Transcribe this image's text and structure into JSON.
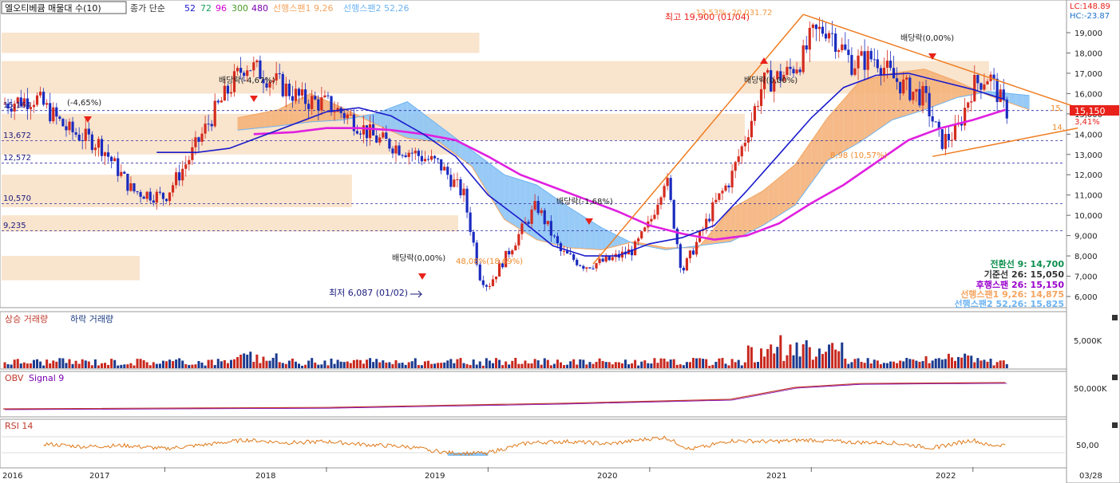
{
  "header": {
    "title": "엘오티베큠 매물대 수(10)",
    "ma_label": "종가 단순",
    "ma_periods": [
      {
        "label": "52",
        "color": "#1a1acc"
      },
      {
        "label": "72",
        "color": "#1a9f5c"
      },
      {
        "label": "96",
        "color": "#cc00cc"
      },
      {
        "label": "300",
        "color": "#4a9a2a"
      },
      {
        "label": "480",
        "color": "#7a00b0"
      }
    ],
    "span1_label": "선행스팬1 9,26",
    "span2_label": "선행스팬2 52,26",
    "span1_color": "#f4a460",
    "span2_color": "#6db3f2"
  },
  "corner": {
    "lc": "LC:148.89",
    "hc": "HC:-23.87"
  },
  "ichimoku_readout": [
    {
      "label": "전환선 9:",
      "value": "14,700",
      "color": "#0b8f4d"
    },
    {
      "label": "기준선 26:",
      "value": "15,050",
      "color": "#333333"
    },
    {
      "label": "후행스팬 26:",
      "value": "15,150",
      "color": "#9900cc"
    },
    {
      "label": "선행스팬1 9,26:",
      "value": "14,875",
      "color": "#f4a460"
    },
    {
      "label": "선행스팬2 52,26:",
      "value": "15,825",
      "color": "#6db3f2"
    }
  ],
  "annotations": {
    "high": "최고 19,900 (01/04)",
    "high_overlay": "-13.53%   -20.031.72",
    "high_fib": "20,031.72",
    "low": "최저 6,087 (01/02)",
    "div_2016": "(-4,65%)",
    "div_2017": "배당락(-4,67%)",
    "div_2018": "배당락(0,00%)",
    "div_2019": "배당락(-1,68%)",
    "div_2020": "배당락(0,00%)",
    "div_2021": "배당락(0,00%)",
    "pct_2019": "48,08%(18,69%)",
    "pct_2021": "8,98 (10,57%)",
    "trend_right_top": "15.",
    "trend_right_bottom": "14."
  },
  "current_price": {
    "value": "15,150",
    "change": "3,41%",
    "color": "#e8221a"
  },
  "level_labels": [
    {
      "text": "15,164",
      "value": 15164
    },
    {
      "text": "13,672",
      "value": 13672
    },
    {
      "text": "12,572",
      "value": 12572
    },
    {
      "text": "10,570",
      "value": 10570
    },
    {
      "text": "9,235",
      "value": 9235
    }
  ],
  "price_axis_labels": [
    "19,000",
    "18,000",
    "17,000",
    "16,000",
    "15,000",
    "14,000",
    "13,000",
    "12,000",
    "11,000",
    "10,000",
    "9,000",
    "8,000",
    "7,000",
    "6,000"
  ],
  "volume_panel": {
    "title_up": "상승 거래량",
    "title_down": "하락 거래량",
    "axis_label": "5,000K"
  },
  "obv_panel": {
    "title": "OBV",
    "signal": "Signal 9",
    "axis_label": "50,000K"
  },
  "rsi_panel": {
    "title": "RSI 14",
    "axis_label": "50,00"
  },
  "x_axis": {
    "labels": [
      "2016",
      "2017",
      "2018",
      "2019",
      "2020",
      "2021",
      "2022",
      "03/28"
    ]
  },
  "chart_data": {
    "type": "line",
    "title": "엘오티베큠 매물대 수(10)",
    "ylim": [
      5600,
      20000
    ],
    "x_range": [
      2016.0,
      2022.5
    ],
    "close_anchors": {
      "x": [
        2016.0,
        2016.2,
        2016.4,
        2016.6,
        2016.8,
        2017.0,
        2017.15,
        2017.3,
        2017.5,
        2017.7,
        2017.85,
        2018.0,
        2018.15,
        2018.3,
        2018.5,
        2018.7,
        2018.85,
        2018.95,
        2019.0,
        2019.15,
        2019.3,
        2019.45,
        2019.6,
        2019.75,
        2019.9,
        2020.0,
        2020.1,
        2020.2,
        2020.3,
        2020.4,
        2020.5,
        2020.6,
        2020.7,
        2020.85,
        2020.95,
        2021.0,
        2021.1,
        2021.25,
        2021.4,
        2021.5,
        2021.6,
        2021.7,
        2021.8,
        2021.9,
        2022.0,
        2022.1,
        2022.2
      ],
      "y": [
        15500,
        15800,
        14200,
        13500,
        11200,
        10900,
        12800,
        15000,
        17500,
        16500,
        15700,
        15500,
        14800,
        13800,
        13200,
        12500,
        11000,
        7000,
        6500,
        8500,
        10500,
        8200,
        7500,
        7800,
        8300,
        9600,
        12000,
        7200,
        8800,
        10500,
        11800,
        14000,
        16500,
        17000,
        17800,
        18800,
        19300,
        17500,
        17800,
        16800,
        16200,
        15800,
        13600,
        14100,
        16400,
        16900,
        15150
      ]
    },
    "sma52": {
      "x": [
        2016.95,
        2017.2,
        2017.4,
        2017.6,
        2017.8,
        2018.0,
        2018.2,
        2018.4,
        2018.6,
        2018.8,
        2019.0,
        2019.2,
        2019.4,
        2019.6,
        2019.8,
        2020.0,
        2020.2,
        2020.4,
        2020.6,
        2020.8,
        2021.0,
        2021.2,
        2021.4,
        2021.6,
        2021.8,
        2022.0,
        2022.2
      ],
      "y": [
        13100,
        13100,
        13300,
        13900,
        14500,
        15100,
        15300,
        14900,
        14000,
        12900,
        11000,
        9800,
        8500,
        8000,
        8000,
        8600,
        8900,
        9500,
        11200,
        13000,
        14800,
        16300,
        16900,
        17000,
        16600,
        16200,
        15700
      ]
    },
    "sma96": {
      "x": [
        2017.55,
        2017.8,
        2018.0,
        2018.2,
        2018.4,
        2018.6,
        2018.8,
        2019.0,
        2019.2,
        2019.4,
        2019.6,
        2019.8,
        2020.0,
        2020.2,
        2020.4,
        2020.6,
        2020.8,
        2021.0,
        2021.2,
        2021.4,
        2021.6,
        2021.8,
        2022.0,
        2022.2
      ],
      "y": [
        14000,
        14100,
        14300,
        14300,
        14200,
        14000,
        13700,
        12900,
        12000,
        11400,
        10800,
        10200,
        9500,
        9100,
        8800,
        9000,
        9600,
        10600,
        11500,
        12600,
        13700,
        14300,
        14700,
        15200
      ]
    },
    "span_cloud": {
      "x": [
        2017.45,
        2017.7,
        2017.9,
        2018.1,
        2018.3,
        2018.5,
        2018.7,
        2018.9,
        2019.1,
        2019.3,
        2019.5,
        2019.7,
        2019.9,
        2020.1,
        2020.3,
        2020.5,
        2020.7,
        2020.9,
        2021.1,
        2021.3,
        2021.5,
        2021.7,
        2021.9,
        2022.1,
        2022.35
      ],
      "span1": [
        14800,
        15200,
        16000,
        15300,
        14500,
        13800,
        13600,
        12400,
        9800,
        8800,
        8400,
        8300,
        8700,
        8400,
        8400,
        10300,
        11200,
        12500,
        14800,
        16600,
        17000,
        17200,
        16600,
        15900,
        15200
      ],
      "span2": [
        14200,
        14400,
        14600,
        14700,
        15000,
        15600,
        14400,
        13200,
        12000,
        11500,
        10400,
        9400,
        8600,
        8300,
        8500,
        8700,
        9500,
        10500,
        12700,
        13600,
        14700,
        15200,
        15800,
        16100,
        15900
      ]
    },
    "volume_profile": [
      {
        "from": 18000,
        "to": 19000,
        "width": 0.45
      },
      {
        "from": 16000,
        "to": 17600,
        "width": 0.93
      },
      {
        "from": 13700,
        "to": 15000,
        "width": 0.7
      },
      {
        "from": 13000,
        "to": 13700,
        "width": 0.43
      },
      {
        "from": 10400,
        "to": 12000,
        "width": 0.33
      },
      {
        "from": 9200,
        "to": 10000,
        "width": 0.43
      },
      {
        "from": 6800,
        "to": 8000,
        "width": 0.13
      }
    ],
    "trendlines": [
      {
        "from": [
          2019.65,
          7600
        ],
        "to": [
          2020.95,
          19900
        ]
      },
      {
        "from": [
          2020.95,
          19900
        ],
        "to": [
          2022.65,
          15300
        ]
      },
      {
        "from": [
          2021.75,
          12900
        ],
        "to": [
          2022.65,
          14300
        ]
      }
    ],
    "rsi": {
      "x": [
        2016.25,
        2016.5,
        2016.75,
        2017.0,
        2017.25,
        2017.5,
        2017.75,
        2018.0,
        2018.25,
        2018.5,
        2018.75,
        2018.9,
        2019.0,
        2019.25,
        2019.5,
        2019.75,
        2020.0,
        2020.1,
        2020.25,
        2020.5,
        2020.75,
        2021.0,
        2021.25,
        2021.5,
        2021.75,
        2022.0,
        2022.1,
        2022.2
      ],
      "y": [
        52,
        45,
        48,
        40,
        50,
        62,
        55,
        58,
        50,
        45,
        30,
        28,
        30,
        55,
        58,
        52,
        65,
        68,
        38,
        60,
        58,
        62,
        56,
        55,
        42,
        62,
        48,
        50
      ]
    },
    "obv_level": {
      "x": [
        2016.0,
        2018.0,
        2019.5,
        2020.5,
        2020.9,
        2021.3,
        2022.2
      ],
      "y": [
        10,
        13,
        22,
        30,
        55,
        63,
        65
      ]
    }
  }
}
